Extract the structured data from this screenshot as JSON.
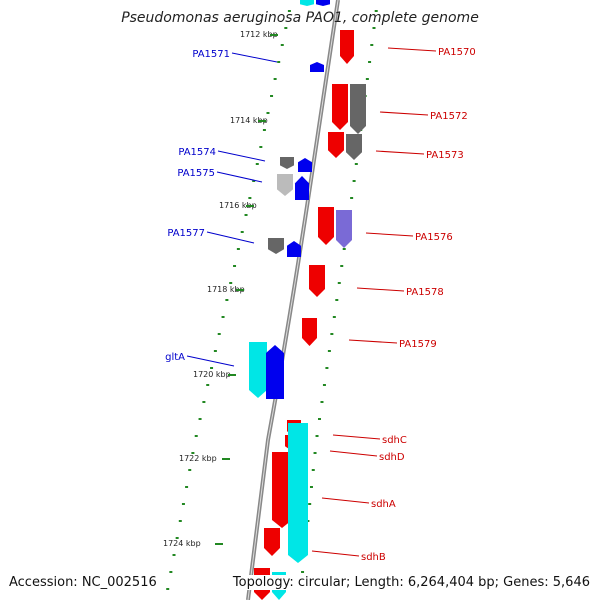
{
  "title": "Pseudomonas aeruginosa PAO1, complete genome",
  "accession": "Accession: NC_002516",
  "summary": "Topology: circular; Length: 6,264,404 bp; Genes: 5,646",
  "colors": {
    "plus_label": "#0000cc",
    "minus_label": "#cc0000",
    "red": "#ee0000",
    "blue": "#0000ee",
    "cyan": "#00e6e6",
    "grey": "#666666",
    "lightgrey": "#bbbbbb",
    "purple": "#7a6ad6",
    "tick": "#228822",
    "backbone": "#888888"
  },
  "kbp_labels": [
    "1712 kbp",
    "1714 kbp",
    "1716 kbp",
    "1718 kbp",
    "1720 kbp",
    "1722 kbp",
    "1724 kbp"
  ],
  "gene_labels": [
    {
      "text": "PA1570",
      "side": "right"
    },
    {
      "text": "PA1571",
      "side": "left"
    },
    {
      "text": "PA1572",
      "side": "right"
    },
    {
      "text": "PA1573",
      "side": "right"
    },
    {
      "text": "PA1574",
      "side": "left"
    },
    {
      "text": "PA1575",
      "side": "left"
    },
    {
      "text": "PA1576",
      "side": "right"
    },
    {
      "text": "PA1577",
      "side": "left"
    },
    {
      "text": "PA1578",
      "side": "right"
    },
    {
      "text": "PA1579",
      "side": "right"
    },
    {
      "text": "gltA",
      "side": "left"
    },
    {
      "text": "sdhC",
      "side": "right"
    },
    {
      "text": "sdhD",
      "side": "right"
    },
    {
      "text": "sdhA",
      "side": "right"
    },
    {
      "text": "sdhB",
      "side": "right"
    }
  ]
}
